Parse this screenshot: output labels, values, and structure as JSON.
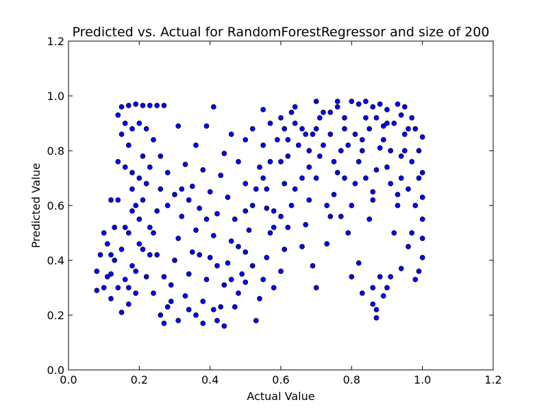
{
  "chart_data": {
    "type": "scatter",
    "title": "Predicted vs. Actual for RandomForestRegressor and size of 200",
    "xlabel": "Actual Value",
    "ylabel": "Predicted Value",
    "xlim": [
      0.0,
      1.2
    ],
    "ylim": [
      0.0,
      1.2
    ],
    "xticks": [
      "0.0",
      "0.2",
      "0.4",
      "0.6",
      "0.8",
      "1.0",
      "1.2"
    ],
    "yticks": [
      "0.0",
      "0.2",
      "0.4",
      "0.6",
      "0.8",
      "1.0",
      "1.2"
    ],
    "grid": false,
    "marker_color": "#0000ff",
    "marker_edge": "#000000",
    "points": [
      [
        0.15,
        0.96
      ],
      [
        0.17,
        0.965
      ],
      [
        0.19,
        0.97
      ],
      [
        0.21,
        0.965
      ],
      [
        0.23,
        0.965
      ],
      [
        0.25,
        0.965
      ],
      [
        0.27,
        0.965
      ],
      [
        0.14,
        0.93
      ],
      [
        0.16,
        0.9
      ],
      [
        0.18,
        0.88
      ],
      [
        0.15,
        0.86
      ],
      [
        0.17,
        0.82
      ],
      [
        0.2,
        0.9
      ],
      [
        0.22,
        0.88
      ],
      [
        0.14,
        0.76
      ],
      [
        0.16,
        0.74
      ],
      [
        0.18,
        0.72
      ],
      [
        0.31,
        0.89
      ],
      [
        0.41,
        0.96
      ],
      [
        0.39,
        0.89
      ],
      [
        0.12,
        0.62
      ],
      [
        0.1,
        0.5
      ],
      [
        0.09,
        0.42
      ],
      [
        0.08,
        0.36
      ],
      [
        0.08,
        0.29
      ],
      [
        0.1,
        0.3
      ],
      [
        0.11,
        0.46
      ],
      [
        0.12,
        0.35
      ],
      [
        0.13,
        0.4
      ],
      [
        0.12,
        0.26
      ],
      [
        0.14,
        0.3
      ],
      [
        0.15,
        0.44
      ],
      [
        0.16,
        0.33
      ],
      [
        0.17,
        0.5
      ],
      [
        0.15,
        0.21
      ],
      [
        0.17,
        0.24
      ],
      [
        0.18,
        0.38
      ],
      [
        0.19,
        0.28
      ],
      [
        0.2,
        0.46
      ],
      [
        0.2,
        0.55
      ],
      [
        0.21,
        0.62
      ],
      [
        0.22,
        0.68
      ],
      [
        0.18,
        0.58
      ],
      [
        0.16,
        0.52
      ],
      [
        0.22,
        0.34
      ],
      [
        0.23,
        0.42
      ],
      [
        0.24,
        0.5
      ],
      [
        0.25,
        0.58
      ],
      [
        0.26,
        0.66
      ],
      [
        0.24,
        0.28
      ],
      [
        0.26,
        0.2
      ],
      [
        0.27,
        0.17
      ],
      [
        0.28,
        0.23
      ],
      [
        0.29,
        0.31
      ],
      [
        0.3,
        0.4
      ],
      [
        0.31,
        0.48
      ],
      [
        0.32,
        0.56
      ],
      [
        0.3,
        0.64
      ],
      [
        0.28,
        0.72
      ],
      [
        0.26,
        0.78
      ],
      [
        0.24,
        0.84
      ],
      [
        0.33,
        0.27
      ],
      [
        0.34,
        0.35
      ],
      [
        0.35,
        0.43
      ],
      [
        0.36,
        0.51
      ],
      [
        0.37,
        0.59
      ],
      [
        0.35,
        0.67
      ],
      [
        0.33,
        0.75
      ],
      [
        0.36,
        0.2
      ],
      [
        0.38,
        0.25
      ],
      [
        0.39,
        0.33
      ],
      [
        0.4,
        0.41
      ],
      [
        0.41,
        0.49
      ],
      [
        0.42,
        0.57
      ],
      [
        0.4,
        0.65
      ],
      [
        0.38,
        0.73
      ],
      [
        0.36,
        0.82
      ],
      [
        0.42,
        0.18
      ],
      [
        0.43,
        0.23
      ],
      [
        0.44,
        0.31
      ],
      [
        0.45,
        0.39
      ],
      [
        0.46,
        0.47
      ],
      [
        0.47,
        0.55
      ],
      [
        0.45,
        0.63
      ],
      [
        0.43,
        0.71
      ],
      [
        0.44,
        0.79
      ],
      [
        0.46,
        0.86
      ],
      [
        0.48,
        0.28
      ],
      [
        0.49,
        0.35
      ],
      [
        0.5,
        0.43
      ],
      [
        0.51,
        0.51
      ],
      [
        0.52,
        0.6
      ],
      [
        0.5,
        0.68
      ],
      [
        0.48,
        0.76
      ],
      [
        0.5,
        0.84
      ],
      [
        0.52,
        0.88
      ],
      [
        0.53,
        0.18
      ],
      [
        0.54,
        0.26
      ],
      [
        0.55,
        0.33
      ],
      [
        0.56,
        0.41
      ],
      [
        0.57,
        0.5
      ],
      [
        0.58,
        0.58
      ],
      [
        0.56,
        0.66
      ],
      [
        0.54,
        0.74
      ],
      [
        0.55,
        0.82
      ],
      [
        0.57,
        0.9
      ],
      [
        0.55,
        0.95
      ],
      [
        0.58,
        0.3
      ],
      [
        0.6,
        0.36
      ],
      [
        0.61,
        0.44
      ],
      [
        0.62,
        0.52
      ],
      [
        0.63,
        0.6
      ],
      [
        0.61,
        0.68
      ],
      [
        0.6,
        0.76
      ],
      [
        0.62,
        0.84
      ],
      [
        0.6,
        0.92
      ],
      [
        0.64,
        0.96
      ],
      [
        0.66,
        0.45
      ],
      [
        0.67,
        0.53
      ],
      [
        0.68,
        0.62
      ],
      [
        0.7,
        0.7
      ],
      [
        0.71,
        0.78
      ],
      [
        0.69,
        0.86
      ],
      [
        0.72,
        0.94
      ],
      [
        0.7,
        0.98
      ],
      [
        0.7,
        0.3
      ],
      [
        0.69,
        0.38
      ],
      [
        0.73,
        0.46
      ],
      [
        0.74,
        0.56
      ],
      [
        0.75,
        0.64
      ],
      [
        0.76,
        0.72
      ],
      [
        0.77,
        0.8
      ],
      [
        0.78,
        0.88
      ],
      [
        0.76,
        0.96
      ],
      [
        0.79,
        0.5
      ],
      [
        0.8,
        0.6
      ],
      [
        0.81,
        0.68
      ],
      [
        0.82,
        0.76
      ],
      [
        0.83,
        0.84
      ],
      [
        0.84,
        0.92
      ],
      [
        0.82,
        0.97
      ],
      [
        0.85,
        0.55
      ],
      [
        0.86,
        0.65
      ],
      [
        0.87,
        0.73
      ],
      [
        0.88,
        0.81
      ],
      [
        0.89,
        0.89
      ],
      [
        0.9,
        0.95
      ],
      [
        0.82,
        0.39
      ],
      [
        0.83,
        0.28
      ],
      [
        0.86,
        0.3
      ],
      [
        0.86,
        0.24
      ],
      [
        0.87,
        0.19
      ],
      [
        0.87,
        0.22
      ],
      [
        0.88,
        0.34
      ],
      [
        0.89,
        0.27
      ],
      [
        0.9,
        0.3
      ],
      [
        0.91,
        0.34
      ],
      [
        0.92,
        0.5
      ],
      [
        0.93,
        0.6
      ],
      [
        0.94,
        0.7
      ],
      [
        0.95,
        0.8
      ],
      [
        0.96,
        0.88
      ],
      [
        0.95,
        0.96
      ],
      [
        0.97,
        0.5
      ],
      [
        0.98,
        0.6
      ],
      [
        0.99,
        0.7
      ],
      [
        0.99,
        0.8
      ],
      [
        1.0,
        0.85
      ],
      [
        1.0,
        0.72
      ],
      [
        1.0,
        0.63
      ],
      [
        1.0,
        0.55
      ],
      [
        1.0,
        0.48
      ],
      [
        1.0,
        0.41
      ],
      [
        0.99,
        0.36
      ],
      [
        0.98,
        0.33
      ],
      [
        0.96,
        0.45
      ],
      [
        0.94,
        0.37
      ],
      [
        0.8,
        0.34
      ],
      [
        0.73,
        0.6
      ],
      [
        0.77,
        0.56
      ],
      [
        0.86,
        0.62
      ],
      [
        0.91,
        0.68
      ],
      [
        0.94,
        0.78
      ],
      [
        0.97,
        0.92
      ],
      [
        0.93,
        0.97
      ],
      [
        0.88,
        0.97
      ],
      [
        0.84,
        0.98
      ],
      [
        0.8,
        0.98
      ],
      [
        0.76,
        0.98
      ],
      [
        0.64,
        0.9
      ],
      [
        0.62,
        0.78
      ],
      [
        0.65,
        0.82
      ],
      [
        0.67,
        0.86
      ],
      [
        0.68,
        0.74
      ],
      [
        0.66,
        0.7
      ],
      [
        0.64,
        0.66
      ],
      [
        0.6,
        0.56
      ],
      [
        0.58,
        0.52
      ],
      [
        0.56,
        0.59
      ],
      [
        0.52,
        0.38
      ],
      [
        0.5,
        0.32
      ],
      [
        0.47,
        0.23
      ],
      [
        0.44,
        0.16
      ],
      [
        0.41,
        0.22
      ],
      [
        0.38,
        0.17
      ],
      [
        0.34,
        0.22
      ],
      [
        0.31,
        0.18
      ],
      [
        0.29,
        0.25
      ],
      [
        0.27,
        0.34
      ],
      [
        0.25,
        0.42
      ],
      [
        0.23,
        0.52
      ],
      [
        0.21,
        0.44
      ],
      [
        0.19,
        0.36
      ],
      [
        0.17,
        0.3
      ],
      [
        0.13,
        0.52
      ],
      [
        0.12,
        0.42
      ],
      [
        0.11,
        0.34
      ],
      [
        0.14,
        0.62
      ],
      [
        0.18,
        0.66
      ],
      [
        0.2,
        0.7
      ],
      [
        0.23,
        0.74
      ],
      [
        0.21,
        0.78
      ],
      [
        0.19,
        0.6
      ],
      [
        0.28,
        0.6
      ],
      [
        0.32,
        0.66
      ],
      [
        0.34,
        0.62
      ],
      [
        0.37,
        0.42
      ],
      [
        0.39,
        0.55
      ],
      [
        0.42,
        0.38
      ],
      [
        0.46,
        0.33
      ],
      [
        0.48,
        0.45
      ],
      [
        0.5,
        0.58
      ],
      [
        0.53,
        0.66
      ],
      [
        0.55,
        0.7
      ],
      [
        0.57,
        0.76
      ],
      [
        0.59,
        0.84
      ],
      [
        0.61,
        0.88
      ],
      [
        0.63,
        0.94
      ],
      [
        0.71,
        0.92
      ],
      [
        0.74,
        0.86
      ],
      [
        0.79,
        0.82
      ],
      [
        0.81,
        0.86
      ],
      [
        0.83,
        0.8
      ],
      [
        0.85,
        0.88
      ],
      [
        0.87,
        0.92
      ],
      [
        0.89,
        0.84
      ],
      [
        0.91,
        0.8
      ],
      [
        0.92,
        0.9
      ],
      [
        0.95,
        0.86
      ],
      [
        0.97,
        0.76
      ],
      [
        0.96,
        0.66
      ],
      [
        0.93,
        0.64
      ],
      [
        0.9,
        0.74
      ],
      [
        0.84,
        0.7
      ],
      [
        0.78,
        0.7
      ],
      [
        0.75,
        0.76
      ],
      [
        0.72,
        0.82
      ],
      [
        0.68,
        0.8
      ],
      [
        0.66,
        0.88
      ],
      [
        0.7,
        0.88
      ],
      [
        0.74,
        0.94
      ],
      [
        0.78,
        0.92
      ],
      [
        0.86,
        0.96
      ],
      [
        0.9,
        0.9
      ],
      [
        0.94,
        0.93
      ],
      [
        0.98,
        0.88
      ]
    ]
  }
}
